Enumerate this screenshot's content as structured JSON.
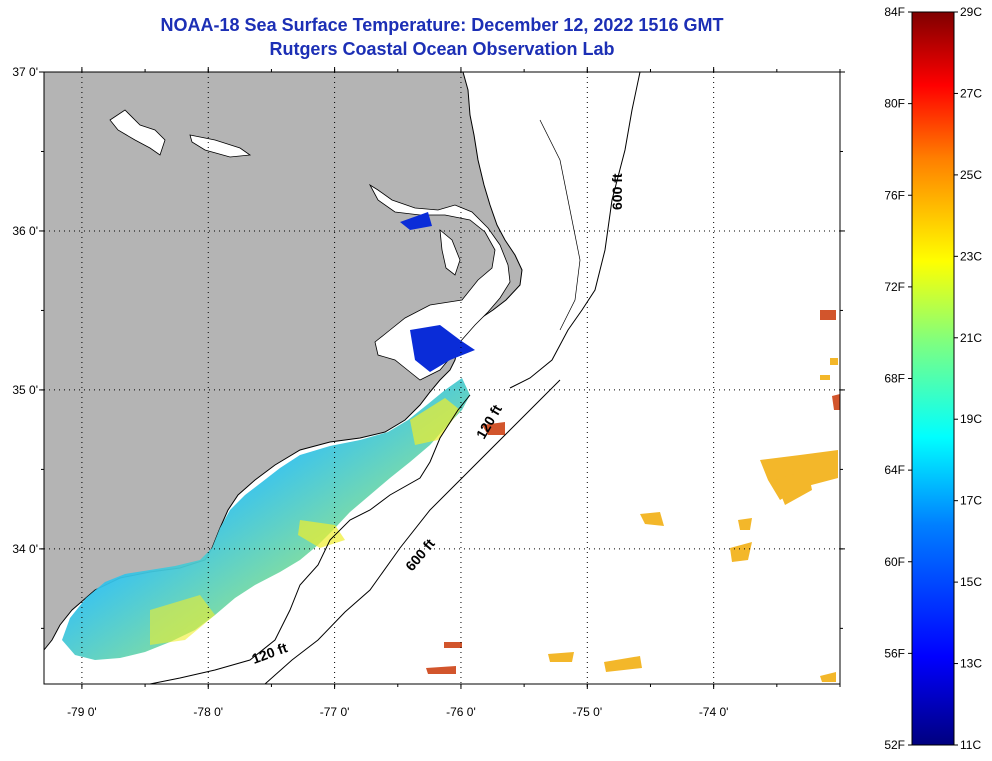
{
  "title": {
    "line1": "NOAA-18 Sea Surface Temperature:  December 12, 2022 1516 GMT",
    "line2": "Rutgers Coastal Ocean Observation Lab"
  },
  "map": {
    "lon_range": [
      -79.3,
      -73.0
    ],
    "lat_range": [
      33.15,
      37.0
    ],
    "lat_labels": [
      {
        "value": 37,
        "label": "37 0'"
      },
      {
        "value": 36,
        "label": "36 0'"
      },
      {
        "value": 35,
        "label": "35 0'"
      },
      {
        "value": 34,
        "label": "34 0'"
      }
    ],
    "lon_labels": [
      {
        "value": -79,
        "label": "-79 0'"
      },
      {
        "value": -78,
        "label": "-78 0'"
      },
      {
        "value": -77,
        "label": "-77 0'"
      },
      {
        "value": -76,
        "label": "-76 0'"
      },
      {
        "value": -75,
        "label": "-75 0'"
      },
      {
        "value": -74,
        "label": "-74 0'"
      }
    ],
    "depth_contours": [
      {
        "label": "600 ft"
      },
      {
        "label": "120 ft"
      },
      {
        "label": "600 ft"
      },
      {
        "label": "120 ft"
      }
    ],
    "land_color": "#b4b4b4",
    "ocean_color": "#ffffff"
  },
  "colorbar": {
    "fahrenheit_labels": [
      "84F",
      "80F",
      "76F",
      "72F",
      "68F",
      "64F",
      "60F",
      "56F",
      "52F"
    ],
    "celsius_labels": [
      "29C",
      "27C",
      "25C",
      "23C",
      "21C",
      "19C",
      "17C",
      "15C",
      "13C",
      "11C"
    ],
    "range_c": [
      11,
      29
    ],
    "colors": [
      "#00007f",
      "#0000ff",
      "#007fff",
      "#00ffff",
      "#7fff7f",
      "#ffff00",
      "#ff7f00",
      "#ff0000",
      "#7f0000"
    ]
  }
}
